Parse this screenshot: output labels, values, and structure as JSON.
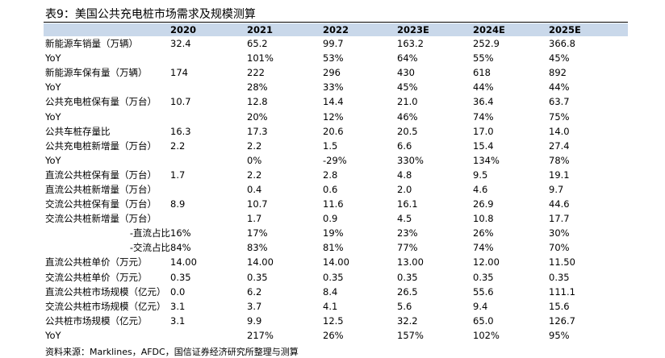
{
  "title": "表9：美国公共充电桩市场需求及规模测算",
  "headers": [
    "",
    "2020",
    "2021",
    "2022",
    "2023E",
    "2024E",
    "2025E"
  ],
  "rows": [
    {
      "label": "新能源车销量（万辆）",
      "values": [
        "32.4",
        "65.2",
        "99.7",
        "163.2",
        "252.9",
        "366.8"
      ]
    },
    {
      "label": "YoY",
      "values": [
        "",
        "101%",
        "53%",
        "64%",
        "55%",
        "45%"
      ]
    },
    {
      "label": "新能源车保有量（万辆）",
      "values": [
        "174",
        "222",
        "296",
        "430",
        "618",
        "892"
      ]
    },
    {
      "label": "YoY",
      "values": [
        "",
        "28%",
        "33%",
        "45%",
        "44%",
        "44%"
      ]
    },
    {
      "label": "公共充电桩保有量（万台）",
      "values": [
        "10.7",
        "12.8",
        "14.4",
        "21.0",
        "36.4",
        "63.7"
      ]
    },
    {
      "label": "YoY",
      "values": [
        "",
        "20%",
        "12%",
        "46%",
        "74%",
        "75%"
      ]
    },
    {
      "label": "公共车桩存量比",
      "values": [
        "16.3",
        "17.3",
        "20.6",
        "20.5",
        "17.0",
        "14.0"
      ]
    },
    {
      "label": "公共充电桩新增量（万台）",
      "values": [
        "2.2",
        "2.2",
        "1.5",
        "6.6",
        "15.4",
        "27.4"
      ]
    },
    {
      "label": "YoY",
      "values": [
        "",
        "0%",
        "-29%",
        "330%",
        "134%",
        "78%"
      ]
    },
    {
      "label": "直流公共桩保有量（万台）",
      "values": [
        "1.7",
        "2.2",
        "2.8",
        "4.8",
        "9.5",
        "19.1"
      ]
    },
    {
      "label": "直流公共桩新增量（万台）",
      "values": [
        "",
        "0.4",
        "0.6",
        "2.0",
        "4.6",
        "9.7"
      ]
    },
    {
      "label": "交流公共桩保有量（万台）",
      "values": [
        "8.9",
        "10.7",
        "11.6",
        "16.1",
        "26.9",
        "44.6"
      ]
    },
    {
      "label": "交流公共桩新增量（万台）",
      "values": [
        "",
        "1.7",
        "0.9",
        "4.5",
        "10.8",
        "17.7"
      ]
    },
    {
      "label": "-直流占比",
      "values": [
        "16%",
        "17%",
        "19%",
        "23%",
        "26%",
        "30%"
      ],
      "sub": true
    },
    {
      "label": "-交流占比",
      "values": [
        "84%",
        "83%",
        "81%",
        "77%",
        "74%",
        "70%"
      ],
      "sub": true
    },
    {
      "label": "直流公共桩单价（万元）",
      "values": [
        "14.00",
        "14.00",
        "14.00",
        "13.00",
        "12.00",
        "11.50"
      ]
    },
    {
      "label": "交流公共桩单价（万元）",
      "values": [
        "0.35",
        "0.35",
        "0.35",
        "0.35",
        "0.35",
        "0.35"
      ]
    },
    {
      "label": "直流公共桩市场规模（亿元）",
      "values": [
        "0.0",
        "6.2",
        "8.4",
        "26.5",
        "55.6",
        "111.1"
      ]
    },
    {
      "label": "交流公共桩市场规模（亿元）",
      "values": [
        "3.1",
        "3.7",
        "4.1",
        "5.6",
        "9.4",
        "15.6"
      ]
    },
    {
      "label": "公共桩市场规模（亿元）",
      "values": [
        "3.1",
        "9.9",
        "12.5",
        "32.2",
        "65.0",
        "126.7"
      ]
    },
    {
      "label": "YoY",
      "values": [
        "",
        "217%",
        "26%",
        "157%",
        "102%",
        "95%"
      ]
    }
  ],
  "source": "资料来源：Marklines，AFDC，国信证券经济研究所整理与测算"
}
